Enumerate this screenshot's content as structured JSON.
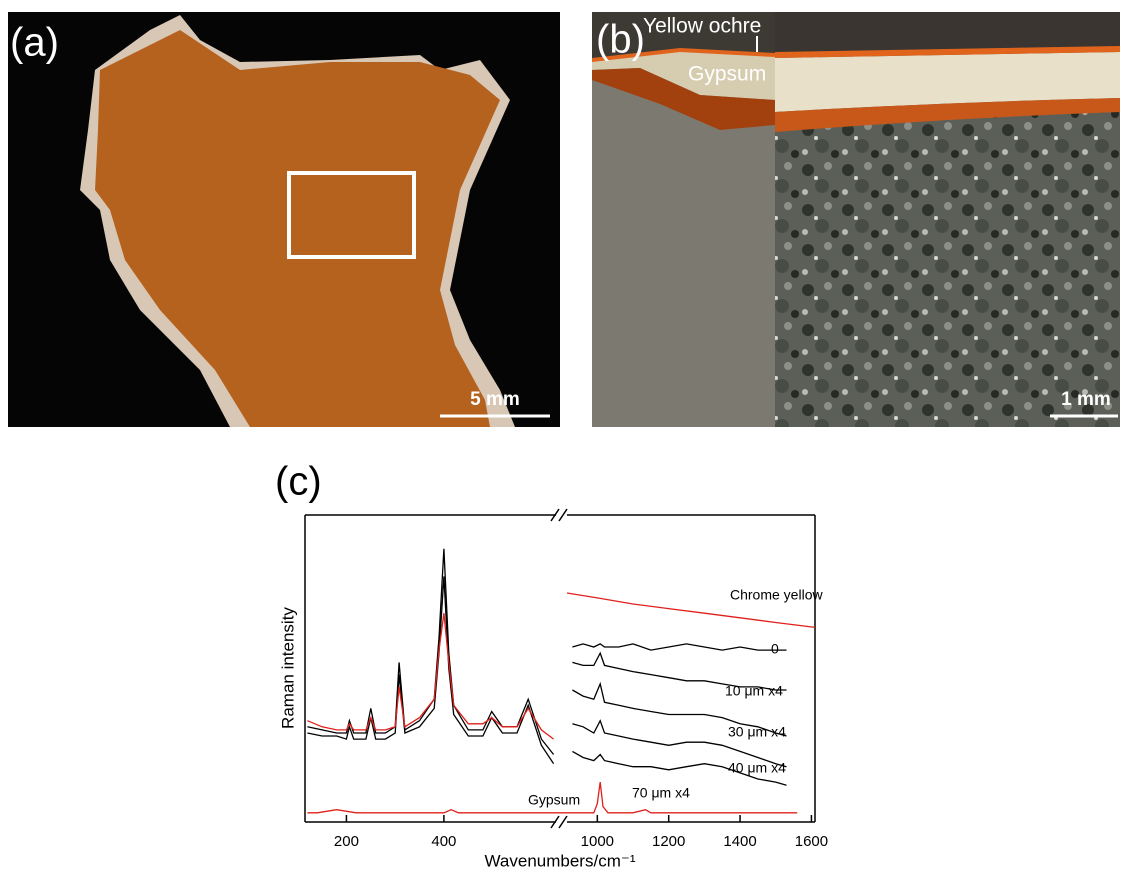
{
  "panels": {
    "a": {
      "label": "(a)",
      "scale_bar": "5 mm"
    },
    "b": {
      "label": "(b)",
      "layer_labels": [
        "Yellow ochre",
        "Gypsum"
      ],
      "scale_bar": "1 mm"
    },
    "c": {
      "label": "(c)"
    }
  },
  "chart_data": {
    "type": "line",
    "y_label": "Raman intensity",
    "x_label": "Wavenumbers/cm⁻¹",
    "xlim": [
      [
        115,
        630
      ],
      [
        915,
        1610
      ]
    ],
    "ylim": [
      0,
      100
    ],
    "xticks": [
      200,
      400,
      1000,
      1200,
      1400,
      1600
    ],
    "series": [
      {
        "color": "#000000",
        "x": [
          120,
          150,
          180,
          200,
          206,
          215,
          240,
          250,
          260,
          280,
          300,
          308,
          320,
          350,
          380,
          390,
          400,
          410,
          420,
          450,
          480,
          498,
          520,
          550,
          573,
          600,
          625
        ],
        "values": [
          31,
          30,
          29,
          29,
          33,
          29,
          29,
          37,
          29,
          29,
          31,
          52,
          30,
          33,
          40,
          60,
          89,
          55,
          38,
          30,
          30,
          36,
          31,
          31,
          40,
          27,
          22
        ]
      },
      {
        "color": "#000000",
        "x": [
          120,
          150,
          180,
          200,
          206,
          215,
          240,
          250,
          260,
          280,
          300,
          308,
          320,
          350,
          380,
          390,
          400,
          410,
          420,
          450,
          480,
          498,
          520,
          550,
          573,
          600,
          625
        ],
        "values": [
          29,
          28,
          28,
          27,
          31,
          27,
          27,
          34,
          27,
          27,
          29,
          48,
          29,
          31,
          37,
          55,
          80,
          50,
          35,
          28,
          28,
          34,
          29,
          29,
          38,
          25,
          19
        ]
      },
      {
        "color": "#e0201b",
        "x": [
          120,
          150,
          180,
          200,
          206,
          215,
          240,
          250,
          260,
          280,
          300,
          308,
          320,
          350,
          380,
          390,
          400,
          410,
          420,
          450,
          480,
          498,
          520,
          550,
          573,
          600,
          625
        ],
        "values": [
          33,
          31,
          30,
          30,
          32,
          30,
          30,
          34,
          30,
          30,
          31,
          44,
          31,
          34,
          40,
          56,
          68,
          52,
          38,
          32,
          32,
          34,
          31,
          31,
          37,
          30,
          27
        ]
      },
      {
        "name": "Chrome yellow",
        "color": "#e0201b",
        "x": [
          915,
          1000,
          1100,
          1200,
          1300,
          1400,
          1500,
          1610
        ],
        "values": [
          74.6,
          73,
          71,
          69.5,
          68,
          66.5,
          65,
          63.4
        ]
      },
      {
        "name": "0",
        "color": "#000000",
        "x": [
          930,
          960,
          990,
          1008,
          1020,
          1060,
          1100,
          1150,
          1200,
          1250,
          1300,
          1350,
          1400,
          1450,
          1500,
          1530
        ],
        "values": [
          57,
          58,
          57,
          58,
          57,
          57,
          58,
          56,
          57,
          58,
          57,
          56,
          57,
          56,
          56,
          56
        ]
      },
      {
        "name": "10 μm x4",
        "color": "#000000",
        "x": [
          930,
          960,
          990,
          1008,
          1020,
          1060,
          1100,
          1150,
          1200,
          1250,
          1300,
          1350,
          1400,
          1450,
          1500,
          1530
        ],
        "values": [
          52,
          51,
          51,
          55,
          51,
          50,
          49,
          48,
          47,
          46,
          46,
          45,
          44,
          44,
          43,
          43
        ]
      },
      {
        "name": "30 μm x4",
        "color": "#000000",
        "x": [
          930,
          960,
          990,
          1008,
          1020,
          1060,
          1100,
          1150,
          1200,
          1250,
          1300,
          1350,
          1400,
          1450,
          1500,
          1530
        ],
        "values": [
          43,
          41,
          40,
          45,
          39,
          38,
          37,
          36,
          35,
          35,
          35,
          34,
          32,
          31,
          29,
          28
        ]
      },
      {
        "name": "40 μm x4",
        "color": "#000000",
        "x": [
          930,
          960,
          990,
          1008,
          1020,
          1060,
          1100,
          1150,
          1200,
          1250,
          1300,
          1350,
          1400,
          1450,
          1500,
          1530
        ],
        "values": [
          32,
          31,
          29,
          33,
          29,
          28,
          27,
          26,
          25,
          26,
          26,
          25,
          23,
          21,
          19,
          18
        ]
      },
      {
        "name": "70 μm x4",
        "color": "#000000",
        "x": [
          930,
          960,
          990,
          1008,
          1020,
          1060,
          1100,
          1150,
          1200,
          1250,
          1300,
          1350,
          1400,
          1450,
          1500,
          1530
        ],
        "values": [
          23,
          21,
          20,
          22,
          20,
          19,
          18,
          18,
          17,
          18,
          19,
          18,
          16,
          14,
          13,
          12
        ]
      },
      {
        "name": "Gypsum",
        "color": "#e0201b",
        "x": [
          120,
          140,
          180,
          220,
          300,
          400,
          415,
          430,
          520,
          600,
          930,
          990,
          1000,
          1008,
          1016,
          1030,
          1100,
          1135,
          1150,
          1300,
          1560
        ],
        "values": [
          3,
          3,
          4,
          3,
          3,
          3,
          4,
          3,
          3,
          3,
          3,
          3,
          6,
          13,
          5,
          3,
          3,
          4,
          3,
          3,
          3
        ]
      }
    ]
  }
}
